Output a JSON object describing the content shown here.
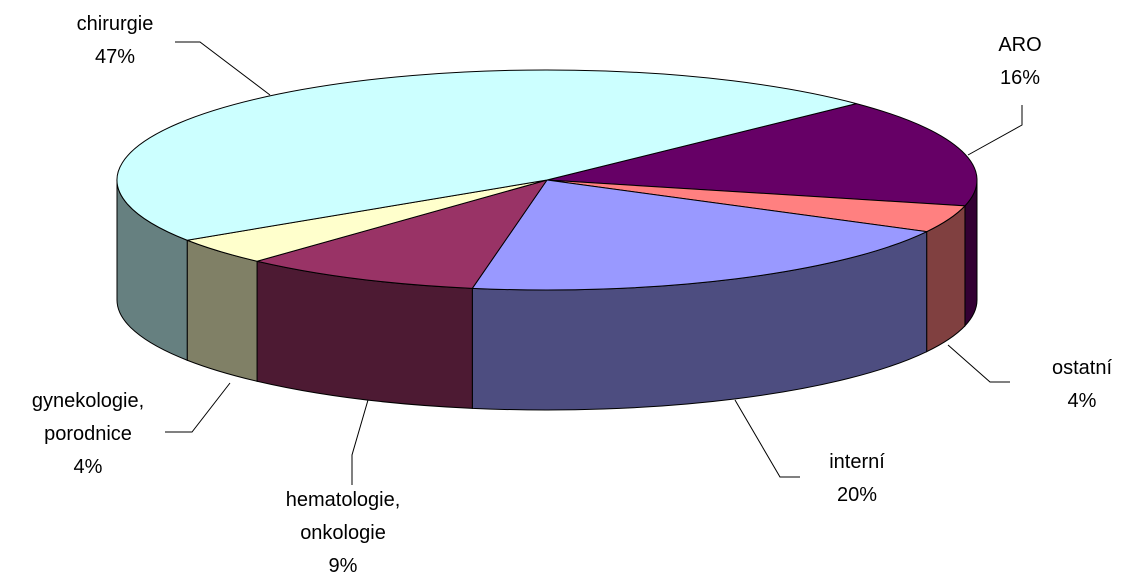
{
  "chart_data": {
    "type": "pie3d",
    "categories": [
      "ARO",
      "ostatní",
      "interní",
      "hematologie, onkologie",
      "gynekologie, porodnice",
      "chirurgie"
    ],
    "values": [
      16,
      4,
      20,
      9,
      4,
      47
    ],
    "value_labels": [
      "16%",
      "4%",
      "20%",
      "9%",
      "4%",
      "47%"
    ],
    "colors": [
      "#660066",
      "#FF8080",
      "#9999FF",
      "#993366",
      "#FFFFCC",
      "#CCFFFF"
    ]
  }
}
